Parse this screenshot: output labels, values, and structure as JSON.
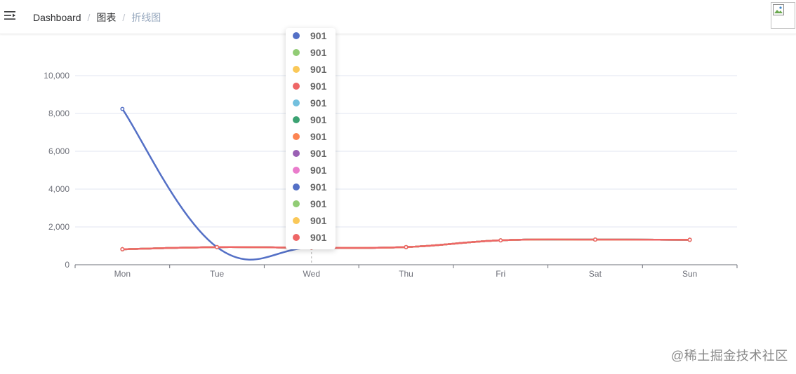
{
  "nav": {
    "breadcrumb": [
      "Dashboard",
      "图表",
      "折线图"
    ]
  },
  "chart_data": {
    "type": "line",
    "categories": [
      "Mon",
      "Tue",
      "Wed",
      "Thu",
      "Fri",
      "Sat",
      "Sun"
    ],
    "ylim": [
      0,
      10000
    ],
    "yticks": [
      0,
      2000,
      4000,
      6000,
      8000,
      10000
    ],
    "ytick_labels": [
      "0",
      "2,000",
      "4,000",
      "6,000",
      "8,000",
      "10,000"
    ],
    "smooth": true,
    "grid": true,
    "series": [
      {
        "color": "#5470c6",
        "values": [
          8240,
          930,
          901,
          934,
          1290,
          1330,
          1320
        ]
      },
      {
        "color": "#91cc75",
        "values": [
          820,
          932,
          901,
          934,
          1290,
          1330,
          1320
        ]
      },
      {
        "color": "#fac858",
        "values": [
          820,
          932,
          901,
          934,
          1290,
          1330,
          1320
        ]
      },
      {
        "color": "#ee6666",
        "values": [
          820,
          932,
          901,
          934,
          1290,
          1330,
          1320
        ]
      },
      {
        "color": "#73c0de",
        "values": [
          820,
          932,
          901,
          934,
          1290,
          1330,
          1320
        ]
      },
      {
        "color": "#3ba272",
        "values": [
          820,
          932,
          901,
          934,
          1290,
          1330,
          1320
        ]
      },
      {
        "color": "#fc8452",
        "values": [
          820,
          932,
          901,
          934,
          1290,
          1330,
          1320
        ]
      },
      {
        "color": "#9a60b4",
        "values": [
          820,
          932,
          901,
          934,
          1290,
          1330,
          1320
        ]
      },
      {
        "color": "#ea7ccc",
        "values": [
          820,
          932,
          901,
          934,
          1290,
          1330,
          1320
        ]
      },
      {
        "color": "#5470c6",
        "values": [
          820,
          932,
          901,
          934,
          1290,
          1330,
          1320
        ]
      },
      {
        "color": "#91cc75",
        "values": [
          820,
          932,
          901,
          934,
          1290,
          1330,
          1320
        ]
      },
      {
        "color": "#fac858",
        "values": [
          820,
          932,
          901,
          934,
          1290,
          1330,
          1320
        ]
      },
      {
        "color": "#ee6666",
        "values": [
          820,
          932,
          901,
          934,
          1290,
          1330,
          1320
        ]
      }
    ],
    "tooltip": {
      "category": "Wed",
      "rows": [
        {
          "color": "#5470c6",
          "value": "901"
        },
        {
          "color": "#91cc75",
          "value": "901"
        },
        {
          "color": "#fac858",
          "value": "901"
        },
        {
          "color": "#ee6666",
          "value": "901"
        },
        {
          "color": "#73c0de",
          "value": "901"
        },
        {
          "color": "#3ba272",
          "value": "901"
        },
        {
          "color": "#fc8452",
          "value": "901"
        },
        {
          "color": "#9a60b4",
          "value": "901"
        },
        {
          "color": "#ea7ccc",
          "value": "901"
        },
        {
          "color": "#5470c6",
          "value": "901"
        },
        {
          "color": "#91cc75",
          "value": "901"
        },
        {
          "color": "#fac858",
          "value": "901"
        },
        {
          "color": "#ee6666",
          "value": "901"
        }
      ]
    }
  },
  "watermark": "@稀土掘金技术社区"
}
